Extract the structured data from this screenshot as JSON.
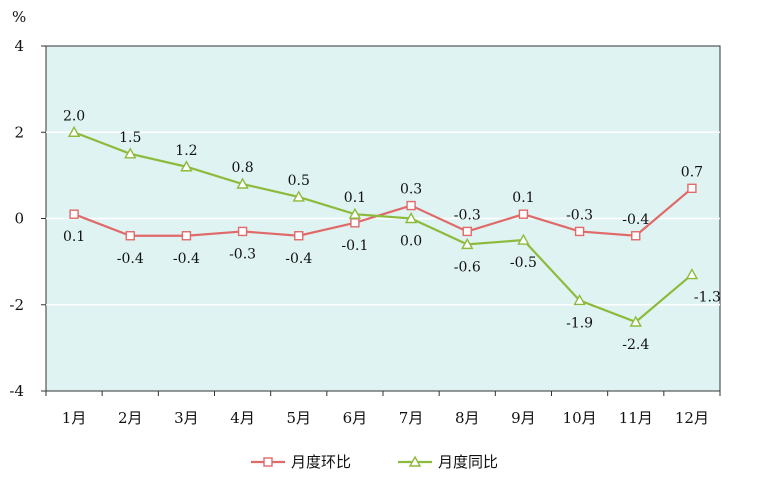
{
  "chart_data": {
    "type": "line",
    "unit_label": "%",
    "categories": [
      "1月",
      "2月",
      "3月",
      "4月",
      "5月",
      "6月",
      "7月",
      "8月",
      "9月",
      "10月",
      "11月",
      "12月"
    ],
    "series": [
      {
        "name": "月度环比",
        "color": "#e06a6a",
        "marker": "square",
        "values": [
          0.1,
          -0.4,
          -0.4,
          -0.3,
          -0.4,
          -0.1,
          0.3,
          -0.3,
          0.1,
          -0.3,
          -0.4,
          0.7
        ],
        "labels": [
          "0.1",
          "-0.4",
          "-0.4",
          "-0.3",
          "-0.4",
          "-0.1",
          "0.3",
          "-0.3",
          "0.1",
          "-0.3",
          "-0.4",
          "0.7"
        ]
      },
      {
        "name": "月度同比",
        "color": "#8cbb3c",
        "marker": "triangle",
        "values": [
          2.0,
          1.5,
          1.2,
          0.8,
          0.5,
          0.1,
          0.0,
          -0.6,
          -0.5,
          -1.9,
          -2.4,
          -1.3
        ],
        "labels": [
          "2.0",
          "1.5",
          "1.2",
          "0.8",
          "0.5",
          "0.1",
          "0.0",
          "-0.6",
          "-0.5",
          "-1.9",
          "-2.4",
          "-1.3"
        ]
      }
    ],
    "ylim": [
      -4,
      4
    ],
    "yticks": [
      4,
      2,
      0,
      -2,
      -4
    ],
    "ytick_labels": [
      "4",
      "2",
      "0",
      "-2",
      "-4"
    ],
    "grid": true,
    "plot_background": "#dff3f3",
    "legend_position": "bottom"
  }
}
